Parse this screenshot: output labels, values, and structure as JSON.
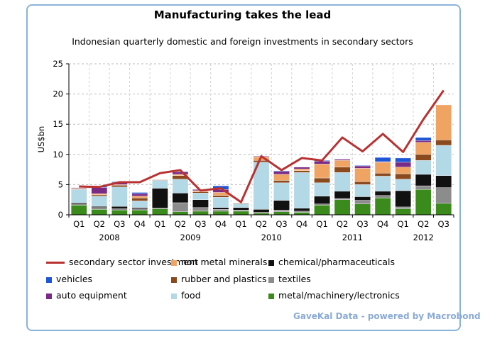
{
  "title": "Manufacturing takes the lead",
  "subtitle": "Indonesian quarterly domestic and foreign investments in secondary sectors",
  "source": "GaveKal Data - powered by Macrobond",
  "chart_data": {
    "type": "bar",
    "stacked": true,
    "ylabel": "US$bn",
    "ylim": [
      0,
      25
    ],
    "yticks": [
      0,
      5,
      10,
      15,
      20,
      25
    ],
    "grid": true,
    "legend_position": "bottom",
    "categories": [
      "Q1 2008",
      "Q2 2008",
      "Q3 2008",
      "Q4 2008",
      "Q1 2009",
      "Q2 2009",
      "Q3 2009",
      "Q4 2009",
      "Q1 2010",
      "Q2 2010",
      "Q3 2010",
      "Q4 2010",
      "Q1 2011",
      "Q2 2011",
      "Q3 2011",
      "Q4 2011",
      "Q1 2012",
      "Q2 2012",
      "Q3 2012"
    ],
    "quarter_labels": [
      "Q1",
      "Q2",
      "Q3",
      "Q4",
      "Q1",
      "Q2",
      "Q3",
      "Q4",
      "Q1",
      "Q2",
      "Q3",
      "Q4",
      "Q1",
      "Q2",
      "Q3",
      "Q4",
      "Q1",
      "Q2",
      "Q3"
    ],
    "year_labels": [
      "2008",
      "2009",
      "2010",
      "2011",
      "2012"
    ],
    "series": [
      {
        "name": "metal/machinery/lectronics",
        "color": "#3a8a1c",
        "values": [
          1.6,
          0.9,
          0.8,
          0.8,
          1.0,
          0.5,
          0.6,
          0.6,
          0.6,
          0.3,
          0.5,
          0.4,
          1.6,
          2.5,
          1.8,
          2.8,
          1.0,
          4.2,
          1.9
        ]
      },
      {
        "name": "textiles",
        "color": "#8c8c8c",
        "values": [
          0.2,
          0.3,
          0.2,
          0.2,
          0.1,
          1.5,
          0.6,
          0.3,
          0.2,
          0.1,
          0.3,
          0.2,
          0.2,
          0.2,
          0.6,
          0.4,
          0.3,
          0.6,
          2.6
        ]
      },
      {
        "name": "chemical/pharmaceuticals",
        "color": "#111111",
        "values": [
          0.2,
          0.2,
          0.4,
          0.2,
          3.3,
          1.6,
          1.3,
          0.3,
          0.4,
          0.5,
          1.6,
          0.5,
          1.3,
          1.2,
          0.6,
          0.7,
          2.7,
          1.9,
          2.0
        ]
      },
      {
        "name": "food",
        "color": "#b3d8e6",
        "values": [
          2.2,
          1.7,
          3.2,
          1.1,
          1.3,
          2.3,
          1.1,
          1.7,
          0.6,
          7.8,
          2.9,
          5.9,
          2.2,
          3.1,
          2.0,
          2.5,
          1.9,
          2.3,
          5.0
        ]
      },
      {
        "name": "rubber and plastics",
        "color": "#8b4a1e",
        "values": [
          0.1,
          0.2,
          0.3,
          0.5,
          0.1,
          0.6,
          0.2,
          0.3,
          0.1,
          0.3,
          0.4,
          0.3,
          0.8,
          0.9,
          0.5,
          0.5,
          0.9,
          1.0,
          0.9
        ]
      },
      {
        "name": "non metal minerals",
        "color": "#f0a463",
        "values": [
          0.1,
          0.2,
          0.1,
          0.3,
          0.0,
          0.2,
          0.2,
          0.5,
          0.0,
          0.6,
          1.0,
          0.3,
          2.3,
          1.1,
          2.2,
          1.8,
          1.1,
          2.0,
          5.8
        ]
      },
      {
        "name": "auto equipment",
        "color": "#7a2b85",
        "values": [
          0.1,
          1.0,
          0.4,
          0.4,
          0.0,
          0.4,
          0.2,
          0.5,
          0.0,
          0.1,
          0.5,
          0.3,
          0.5,
          0.2,
          0.4,
          0.1,
          0.8,
          0.3,
          0.0
        ]
      },
      {
        "name": "vehicles",
        "color": "#1f56d6",
        "values": [
          0.0,
          0.2,
          0.1,
          0.2,
          0.0,
          0.1,
          0.0,
          0.6,
          0.0,
          0.0,
          0.1,
          0.0,
          0.1,
          0.0,
          0.1,
          0.7,
          0.7,
          0.5,
          0.0
        ]
      }
    ],
    "line_series": {
      "name": "secondary sector investment",
      "color": "#b83232",
      "values": [
        4.7,
        4.6,
        5.4,
        5.4,
        6.9,
        7.4,
        4.0,
        4.4,
        2.1,
        9.7,
        7.4,
        9.4,
        9.0,
        12.8,
        10.5,
        13.4,
        10.4,
        15.8,
        20.6
      ]
    },
    "legend": [
      {
        "name": "secondary sector investment",
        "color": "#b83232",
        "kind": "line"
      },
      {
        "name": "non metal minerals",
        "color": "#f0a463",
        "kind": "box"
      },
      {
        "name": "chemical/pharmaceuticals",
        "color": "#111111",
        "kind": "box"
      },
      {
        "name": "vehicles",
        "color": "#1f56d6",
        "kind": "box"
      },
      {
        "name": "rubber and plastics",
        "color": "#8b4a1e",
        "kind": "box"
      },
      {
        "name": "textiles",
        "color": "#8c8c8c",
        "kind": "box"
      },
      {
        "name": "auto equipment",
        "color": "#7a2b85",
        "kind": "box"
      },
      {
        "name": "food",
        "color": "#b3d8e6",
        "kind": "box"
      },
      {
        "name": "metal/machinery/lectronics",
        "color": "#3a8a1c",
        "kind": "box"
      }
    ]
  }
}
